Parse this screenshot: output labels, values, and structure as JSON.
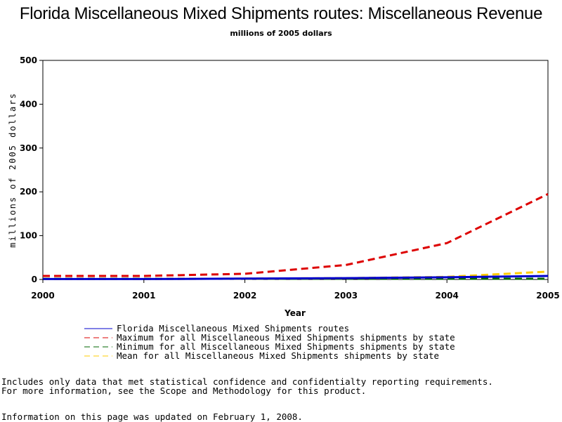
{
  "chart_data": {
    "type": "line",
    "title": "Florida Miscellaneous Mixed Shipments routes: Miscellaneous Revenue",
    "subtitle": "millions of 2005 dollars",
    "xlabel": "Year",
    "ylabel": "millions of 2005 dollars",
    "xlim": [
      2000,
      2005
    ],
    "ylim": [
      0,
      500
    ],
    "xticks": [
      2000,
      2001,
      2002,
      2003,
      2004,
      2005
    ],
    "yticks": [
      0,
      100,
      200,
      300,
      400,
      500
    ],
    "x": [
      2000,
      2001,
      2002,
      2003,
      2004,
      2005
    ],
    "series": [
      {
        "name": "Florida Miscellaneous Mixed Shipments routes",
        "color": "#0000cc",
        "dash": "solid",
        "values": [
          1,
          1,
          2,
          3,
          5,
          8
        ]
      },
      {
        "name": "Maximum for all Miscellaneous Mixed Shipments shipments by state",
        "color": "#dd0000",
        "dash": "dashed",
        "values": [
          8,
          8,
          13,
          33,
          83,
          195
        ]
      },
      {
        "name": "Minimum for all Miscellaneous Mixed Shipments shipments by state",
        "color": "#006600",
        "dash": "dashed",
        "values": [
          0,
          0,
          0,
          0,
          0,
          0
        ]
      },
      {
        "name": "Mean for all Miscellaneous Mixed Shipments shipments by state",
        "color": "#ffcc00",
        "dash": "dashed",
        "values": [
          1,
          1,
          2,
          3,
          6,
          18
        ]
      }
    ],
    "legend_position": "bottom"
  },
  "notes": {
    "line1": "Includes only data that met statistical confidence and confidentialty reporting requirements.",
    "line2": "For more information, see the Scope and Methodology for this product.",
    "updated": "Information on this page was updated on February 1, 2008."
  }
}
